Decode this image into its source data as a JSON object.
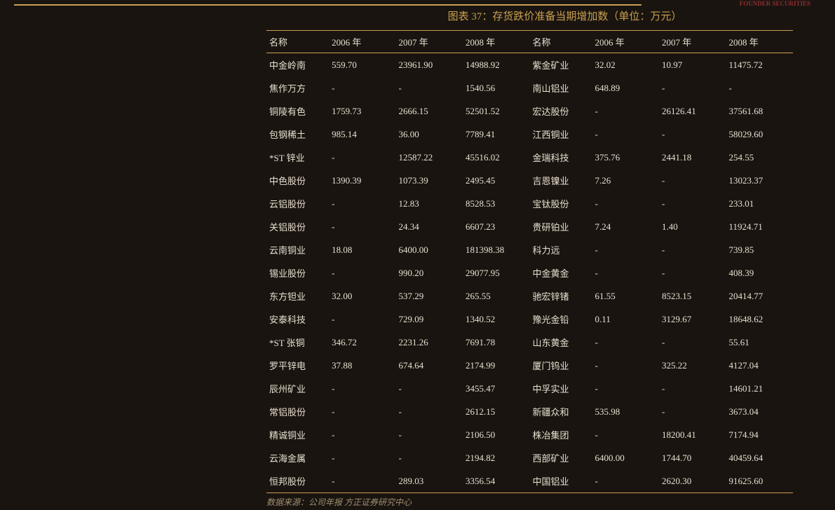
{
  "title": "图表 37：存货跌价准备当期增加数（单位：万元）",
  "watermark": "FOUNDER SECURITIES",
  "footer": "数据来源：公司年报  方正证券研究中心",
  "headers": [
    "名称",
    "2006 年",
    "2007 年",
    "2008 年",
    "名称",
    "2006 年",
    "2007 年",
    "2008 年"
  ],
  "rows": [
    [
      "中金岭南",
      "559.70",
      "23961.90",
      "14988.92",
      "紫金矿业",
      "32.02",
      "10.97",
      "11475.72"
    ],
    [
      "焦作万方",
      "-",
      "-",
      "1540.56",
      "南山铝业",
      "648.89",
      "-",
      "-"
    ],
    [
      "铜陵有色",
      "1759.73",
      "2666.15",
      "52501.52",
      "宏达股份",
      "-",
      "26126.41",
      "37561.68"
    ],
    [
      "包钢稀土",
      "985.14",
      "36.00",
      "7789.41",
      "江西铜业",
      "-",
      "-",
      "58029.60"
    ],
    [
      "*ST 锌业",
      "-",
      "12587.22",
      "45516.02",
      "金瑞科技",
      "375.76",
      "2441.18",
      "254.55"
    ],
    [
      "中色股份",
      "1390.39",
      "1073.39",
      "2495.45",
      "吉恩镍业",
      "7.26",
      "-",
      "13023.37"
    ],
    [
      "云铝股份",
      "-",
      "12.83",
      "8528.53",
      "宝钛股份",
      "-",
      "-",
      "233.01"
    ],
    [
      "关铝股份",
      "-",
      "24.34",
      "6607.23",
      "贵研铂业",
      "7.24",
      "1.40",
      "11924.71"
    ],
    [
      "云南铜业",
      "18.08",
      "6400.00",
      "181398.38",
      "科力远",
      "-",
      "-",
      "739.85"
    ],
    [
      "锡业股份",
      "-",
      "990.20",
      "29077.95",
      "中金黄金",
      "-",
      "-",
      "408.39"
    ],
    [
      "东方钽业",
      "32.00",
      "537.29",
      "265.55",
      "驰宏锌锗",
      "61.55",
      "8523.15",
      "20414.77"
    ],
    [
      "安泰科技",
      "-",
      "729.09",
      "1340.52",
      "豫光金铅",
      "0.11",
      "3129.67",
      "18648.62"
    ],
    [
      "*ST 张铜",
      "346.72",
      "2231.26",
      "7691.78",
      "山东黄金",
      "-",
      "-",
      "55.61"
    ],
    [
      "罗平锌电",
      "37.88",
      "674.64",
      "2174.99",
      "厦门钨业",
      "-",
      "325.22",
      "4127.04"
    ],
    [
      "辰州矿业",
      "-",
      "-",
      "3455.47",
      "中孚实业",
      "-",
      "-",
      "14601.21"
    ],
    [
      "常铝股份",
      "-",
      "-",
      "2612.15",
      "新疆众和",
      "535.98",
      "-",
      "3673.04"
    ],
    [
      "精诚铜业",
      "-",
      "-",
      "2106.50",
      "株冶集团",
      "-",
      "18200.41",
      "7174.94"
    ],
    [
      "云海金属",
      "-",
      "-",
      "2194.82",
      "西部矿业",
      "6400.00",
      "1744.70",
      "40459.64"
    ],
    [
      "恒邦股份",
      "-",
      "289.03",
      "3356.54",
      "中国铝业",
      "-",
      "2620.30",
      "91625.60"
    ]
  ],
  "colors": {
    "background": "#1a1410",
    "accent": "#c8a050",
    "text": "#e8e0d0",
    "footer_text": "#a09070",
    "watermark": "#8b3030"
  }
}
